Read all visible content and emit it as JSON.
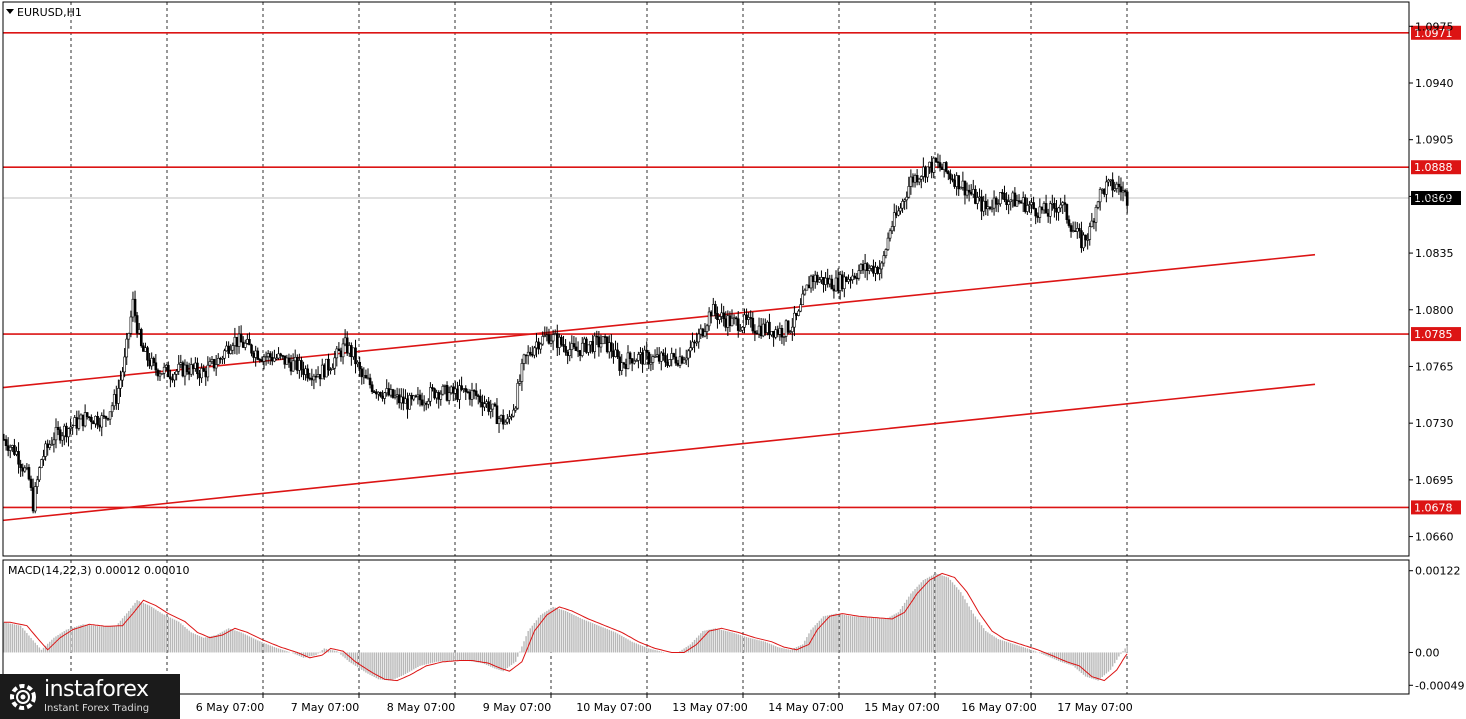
{
  "chart_data": {
    "type": "candlestick",
    "title": "EURUSD,H1",
    "symbol": "EURUSD",
    "timeframe": "H1",
    "y_ticks": [
      "1.0975",
      "1.0940",
      "1.0905",
      "1.0870",
      "1.0835",
      "1.0800",
      "1.0765",
      "1.0730",
      "1.0695",
      "1.0660"
    ],
    "ylim": [
      1.0648,
      1.099
    ],
    "x_ticks": [
      "6 May 07:00",
      "7 May 07:00",
      "8 May 07:00",
      "9 May 07:00",
      "10 May 07:00",
      "13 May 07:00",
      "14 May 07:00",
      "15 May 07:00",
      "16 May 07:00",
      "17 May 07:00"
    ],
    "current_price": "1.0869",
    "horizontal_levels": [
      "1.0971",
      "1.0888",
      "1.0785",
      "1.0678"
    ],
    "trend_lines": [
      {
        "from": [
          "5 May 23:00",
          1.0752
        ],
        "to": [
          "17 May 23:00",
          1.0834
        ]
      },
      {
        "from": [
          "5 May 23:00",
          1.067
        ],
        "to": [
          "17 May 23:00",
          1.0754
        ]
      }
    ],
    "close_path": [
      [
        0,
        1.072
      ],
      [
        6,
        1.0712
      ],
      [
        12,
        1.0695
      ],
      [
        14,
        1.068
      ],
      [
        18,
        1.0708
      ],
      [
        24,
        1.0722
      ],
      [
        32,
        1.0728
      ],
      [
        40,
        1.0734
      ],
      [
        48,
        1.0732
      ],
      [
        54,
        1.0746
      ],
      [
        58,
        1.0768
      ],
      [
        62,
        1.0804
      ],
      [
        66,
        1.0776
      ],
      [
        72,
        1.0764
      ],
      [
        80,
        1.0761
      ],
      [
        88,
        1.0764
      ],
      [
        96,
        1.0761
      ],
      [
        104,
        1.077
      ],
      [
        110,
        1.0782
      ],
      [
        116,
        1.0778
      ],
      [
        124,
        1.0772
      ],
      [
        132,
        1.077
      ],
      [
        140,
        1.0766
      ],
      [
        146,
        1.0762
      ],
      [
        152,
        1.0761
      ],
      [
        158,
        1.0768
      ],
      [
        164,
        1.0778
      ],
      [
        168,
        1.0772
      ],
      [
        172,
        1.0758
      ],
      [
        178,
        1.0752
      ],
      [
        184,
        1.0748
      ],
      [
        190,
        1.0744
      ],
      [
        196,
        1.0742
      ],
      [
        202,
        1.0746
      ],
      [
        208,
        1.075
      ],
      [
        214,
        1.0748
      ],
      [
        220,
        1.0749
      ],
      [
        226,
        1.0748
      ],
      [
        232,
        1.0742
      ],
      [
        238,
        1.0733
      ],
      [
        242,
        1.073
      ],
      [
        246,
        1.0744
      ],
      [
        250,
        1.0768
      ],
      [
        256,
        1.078
      ],
      [
        262,
        1.0784
      ],
      [
        268,
        1.0779
      ],
      [
        274,
        1.0774
      ],
      [
        280,
        1.0778
      ],
      [
        288,
        1.078
      ],
      [
        292,
        1.0776
      ],
      [
        296,
        1.0766
      ],
      [
        302,
        1.0771
      ],
      [
        310,
        1.077
      ],
      [
        318,
        1.0769
      ],
      [
        326,
        1.0771
      ],
      [
        332,
        1.0778
      ],
      [
        336,
        1.0788
      ],
      [
        340,
        1.08
      ],
      [
        344,
        1.0796
      ],
      [
        350,
        1.0792
      ],
      [
        356,
        1.0792
      ],
      [
        362,
        1.0789
      ],
      [
        368,
        1.0788
      ],
      [
        374,
        1.0787
      ],
      [
        378,
        1.079
      ],
      [
        382,
        1.0796
      ],
      [
        384,
        1.0805
      ],
      [
        388,
        1.082
      ],
      [
        394,
        1.0818
      ],
      [
        400,
        1.0816
      ],
      [
        406,
        1.082
      ],
      [
        412,
        1.0825
      ],
      [
        418,
        1.0826
      ],
      [
        422,
        1.0826
      ],
      [
        426,
        1.085
      ],
      [
        430,
        1.086
      ],
      [
        436,
        1.088
      ],
      [
        442,
        1.0886
      ],
      [
        448,
        1.089
      ],
      [
        454,
        1.0884
      ],
      [
        460,
        1.0878
      ],
      [
        466,
        1.087
      ],
      [
        472,
        1.0862
      ],
      [
        478,
        1.087
      ],
      [
        484,
        1.0868
      ],
      [
        490,
        1.0866
      ],
      [
        496,
        1.0862
      ],
      [
        502,
        1.086
      ],
      [
        508,
        1.0866
      ],
      [
        514,
        1.085
      ],
      [
        518,
        1.0842
      ],
      [
        522,
        1.0848
      ],
      [
        526,
        1.087
      ],
      [
        530,
        1.0876
      ],
      [
        536,
        1.0876
      ],
      [
        540,
        1.0869
      ]
    ],
    "macd": {
      "label": "MACD(14,22,3) 0.00012 0.00010",
      "y_ticks": [
        "0.00122",
        "0.00",
        "-0.00049"
      ],
      "ylim": [
        -0.00062,
        0.00138
      ],
      "path": [
        [
          0,
          0.00045
        ],
        [
          8,
          0.0004
        ],
        [
          14,
          0.00018
        ],
        [
          18,
          4e-05
        ],
        [
          24,
          0.00022
        ],
        [
          30,
          0.00034
        ],
        [
          38,
          0.00042
        ],
        [
          46,
          0.00039
        ],
        [
          54,
          0.0004
        ],
        [
          60,
          0.00062
        ],
        [
          64,
          0.00078
        ],
        [
          70,
          0.0007
        ],
        [
          76,
          0.00058
        ],
        [
          84,
          0.00046
        ],
        [
          90,
          0.0003
        ],
        [
          96,
          0.00022
        ],
        [
          102,
          0.00026
        ],
        [
          108,
          0.00036
        ],
        [
          114,
          0.0003
        ],
        [
          122,
          0.00018
        ],
        [
          130,
          8e-05
        ],
        [
          138,
          0.0
        ],
        [
          144,
          -8e-05
        ],
        [
          150,
          -4e-05
        ],
        [
          154,
          6e-05
        ],
        [
          160,
          2e-05
        ],
        [
          166,
          -0.00014
        ],
        [
          174,
          -0.0003
        ],
        [
          180,
          -0.0004
        ],
        [
          186,
          -0.00042
        ],
        [
          192,
          -0.00034
        ],
        [
          200,
          -0.0002
        ],
        [
          208,
          -0.00014
        ],
        [
          216,
          -0.00012
        ],
        [
          222,
          -0.00012
        ],
        [
          230,
          -0.00016
        ],
        [
          236,
          -0.00024
        ],
        [
          240,
          -0.00028
        ],
        [
          246,
          -0.00014
        ],
        [
          252,
          0.00032
        ],
        [
          258,
          0.00056
        ],
        [
          264,
          0.00068
        ],
        [
          270,
          0.00062
        ],
        [
          278,
          0.0005
        ],
        [
          286,
          0.0004
        ],
        [
          294,
          0.0003
        ],
        [
          302,
          0.00016
        ],
        [
          310,
          6e-05
        ],
        [
          318,
          0.0
        ],
        [
          324,
          0.0
        ],
        [
          330,
          0.00012
        ],
        [
          336,
          0.00032
        ],
        [
          342,
          0.00036
        ],
        [
          350,
          0.0003
        ],
        [
          358,
          0.00022
        ],
        [
          366,
          0.00016
        ],
        [
          372,
          8e-05
        ],
        [
          378,
          4e-05
        ],
        [
          384,
          0.00012
        ],
        [
          388,
          0.00034
        ],
        [
          394,
          0.00054
        ],
        [
          400,
          0.00058
        ],
        [
          408,
          0.00054
        ],
        [
          416,
          0.00052
        ],
        [
          424,
          0.0005
        ],
        [
          430,
          0.0006
        ],
        [
          436,
          0.00088
        ],
        [
          442,
          0.00108
        ],
        [
          448,
          0.00118
        ],
        [
          454,
          0.00112
        ],
        [
          460,
          0.0009
        ],
        [
          466,
          0.00058
        ],
        [
          472,
          0.00032
        ],
        [
          478,
          0.0002
        ],
        [
          486,
          0.00012
        ],
        [
          494,
          4e-05
        ],
        [
          502,
          -6e-05
        ],
        [
          508,
          -0.00014
        ],
        [
          514,
          -0.0002
        ],
        [
          520,
          -0.00036
        ],
        [
          526,
          -0.00042
        ],
        [
          532,
          -0.00026
        ],
        [
          536,
          -6e-05
        ],
        [
          540,
          0.0001
        ]
      ]
    }
  },
  "logo": {
    "brand": "instaforex",
    "tagline": "Instant Forex Trading"
  },
  "colors": {
    "level": "#dc1414",
    "grid": "#000000",
    "candle": "#000000",
    "macd_hist": "#b8b8b8",
    "macd_signal": "#dc1414",
    "current_line": "#c0c0c0"
  }
}
